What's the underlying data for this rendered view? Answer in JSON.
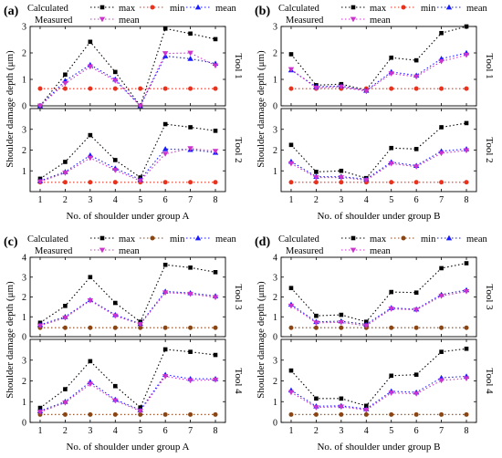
{
  "figure": {
    "panels": [
      {
        "label": "(a)",
        "xlabel": "No. of shoulder under group A",
        "ylabel": "Shoulder damage depth (μm)",
        "subplots": [
          "Tool 1",
          "Tool 2"
        ],
        "min_color": "#e8321e"
      },
      {
        "label": "(b)",
        "xlabel": "No. of shoulder under group B",
        "ylabel": "Shoulder damage depth (μm)",
        "subplots": [
          "Tool 1",
          "Tool 2"
        ],
        "min_color": "#e8321e"
      },
      {
        "label": "(c)",
        "xlabel": "No. of shoulder under group A",
        "ylabel": "Shoulder damage depth (μm)",
        "subplots": [
          "Tool 3",
          "Tool 4"
        ],
        "min_color": "#8b4513"
      },
      {
        "label": "(d)",
        "xlabel": "No. of shoulder under group B",
        "ylabel": "Shoulder damage depth (μm)",
        "subplots": [
          "Tool 3",
          "Tool 4"
        ],
        "min_color": "#8b4513"
      }
    ],
    "legend": {
      "calculated": "Calculated",
      "measured": "Measured",
      "max": "max",
      "min": "min",
      "mean": "mean",
      "measured_mean": "mean"
    },
    "colors": {
      "max": "#000000",
      "min_a": "#e8321e",
      "min_c": "#8b4513",
      "mean_calc": "#1a1aff",
      "mean_meas": "#cc33cc"
    }
  },
  "chart_data": [
    {
      "type": "line",
      "title": "(a) Tool 1",
      "x": [
        1,
        2,
        3,
        4,
        5,
        6,
        7,
        8
      ],
      "ylim": [
        0,
        3
      ],
      "yticks": [
        0,
        1,
        2,
        3
      ],
      "xlabel": "",
      "ylabel": "",
      "series": [
        {
          "name": "max",
          "values": [
            0,
            1.18,
            2.42,
            1.28,
            0,
            2.92,
            2.73,
            2.52
          ]
        },
        {
          "name": "min",
          "values": [
            0.65,
            0.65,
            0.65,
            0.65,
            0.65,
            0.65,
            0.65,
            0.65
          ]
        },
        {
          "name": "mean",
          "values": [
            0,
            0.95,
            1.55,
            1.0,
            0,
            1.88,
            1.78,
            1.6
          ]
        },
        {
          "name": "mean",
          "values": [
            0,
            0.85,
            1.48,
            0.95,
            0,
            1.98,
            2.0,
            1.52
          ]
        }
      ]
    },
    {
      "type": "line",
      "title": "(a) Tool 2",
      "x": [
        1,
        2,
        3,
        4,
        5,
        6,
        7,
        8
      ],
      "ylim": [
        0,
        4
      ],
      "yticks": [
        1,
        2,
        3
      ],
      "xlabel": "No. of shoulder under group A",
      "ylabel": "",
      "series": [
        {
          "name": "max",
          "values": [
            0.62,
            1.43,
            2.72,
            1.52,
            0.68,
            3.25,
            3.1,
            2.93
          ]
        },
        {
          "name": "min",
          "values": [
            0.45,
            0.45,
            0.45,
            0.45,
            0.45,
            0.45,
            0.45,
            0.45
          ]
        },
        {
          "name": "mean",
          "values": [
            0.52,
            0.95,
            1.75,
            1.12,
            0.58,
            2.05,
            2.02,
            1.88
          ]
        },
        {
          "name": "mean",
          "values": [
            0.48,
            0.9,
            1.62,
            1.03,
            0.52,
            1.82,
            2.08,
            1.95
          ]
        }
      ]
    },
    {
      "type": "line",
      "title": "(b) Tool 1",
      "x": [
        1,
        2,
        3,
        4,
        5,
        6,
        7,
        8
      ],
      "ylim": [
        0,
        3
      ],
      "yticks": [
        0,
        1,
        2,
        3
      ],
      "xlabel": "",
      "ylabel": "",
      "series": [
        {
          "name": "max",
          "values": [
            1.95,
            0.78,
            0.82,
            0.6,
            1.82,
            1.72,
            2.75,
            3.0
          ]
        },
        {
          "name": "min",
          "values": [
            0.65,
            0.65,
            0.65,
            0.65,
            0.65,
            0.65,
            0.65,
            0.65
          ]
        },
        {
          "name": "mean",
          "values": [
            1.35,
            0.72,
            0.75,
            0.58,
            1.28,
            1.15,
            1.78,
            2.0
          ]
        },
        {
          "name": "mean",
          "values": [
            1.38,
            0.68,
            0.72,
            0.55,
            1.22,
            1.1,
            1.68,
            1.92
          ]
        }
      ]
    },
    {
      "type": "line",
      "title": "(b) Tool 2",
      "x": [
        1,
        2,
        3,
        4,
        5,
        6,
        7,
        8
      ],
      "ylim": [
        0,
        4
      ],
      "yticks": [
        1,
        2,
        3
      ],
      "xlabel": "No. of shoulder under group B",
      "ylabel": "",
      "series": [
        {
          "name": "max",
          "values": [
            2.25,
            0.95,
            1.0,
            0.65,
            2.1,
            2.05,
            3.1,
            3.3
          ]
        },
        {
          "name": "min",
          "values": [
            0.45,
            0.45,
            0.45,
            0.45,
            0.45,
            0.45,
            0.45,
            0.45
          ]
        },
        {
          "name": "mean",
          "values": [
            1.45,
            0.72,
            0.72,
            0.6,
            1.42,
            1.25,
            1.95,
            2.05
          ]
        },
        {
          "name": "mean",
          "values": [
            1.35,
            0.68,
            0.68,
            0.55,
            1.35,
            1.2,
            1.85,
            1.98
          ]
        }
      ]
    },
    {
      "type": "line",
      "title": "(c) Tool 3",
      "x": [
        1,
        2,
        3,
        4,
        5,
        6,
        7,
        8
      ],
      "ylim": [
        0,
        4
      ],
      "yticks": [
        0,
        1,
        2,
        3,
        4
      ],
      "xlabel": "",
      "ylabel": "",
      "series": [
        {
          "name": "max",
          "values": [
            0.7,
            1.55,
            3.0,
            1.7,
            0.75,
            3.62,
            3.48,
            3.25
          ]
        },
        {
          "name": "min",
          "values": [
            0.45,
            0.45,
            0.45,
            0.45,
            0.45,
            0.45,
            0.45,
            0.45
          ]
        },
        {
          "name": "mean",
          "values": [
            0.6,
            1.0,
            1.85,
            1.1,
            0.65,
            2.28,
            2.2,
            2.05
          ]
        },
        {
          "name": "mean",
          "values": [
            0.55,
            0.95,
            1.82,
            1.05,
            0.62,
            2.22,
            2.15,
            1.98
          ]
        }
      ]
    },
    {
      "type": "line",
      "title": "(c) Tool 4",
      "x": [
        1,
        2,
        3,
        4,
        5,
        6,
        7,
        8
      ],
      "ylim": [
        0,
        4
      ],
      "yticks": [
        0,
        1,
        2,
        3
      ],
      "xlabel": "No. of shoulder under group A",
      "ylabel": "",
      "series": [
        {
          "name": "max",
          "values": [
            0.7,
            1.6,
            2.95,
            1.75,
            0.72,
            3.52,
            3.4,
            3.25
          ]
        },
        {
          "name": "min",
          "values": [
            0.38,
            0.38,
            0.38,
            0.38,
            0.38,
            0.38,
            0.38,
            0.38
          ]
        },
        {
          "name": "mean",
          "values": [
            0.55,
            1.0,
            1.95,
            1.1,
            0.6,
            2.3,
            2.1,
            2.1
          ]
        },
        {
          "name": "mean",
          "values": [
            0.5,
            0.95,
            1.85,
            1.05,
            0.55,
            2.22,
            2.02,
            2.05
          ]
        }
      ]
    },
    {
      "type": "line",
      "title": "(d) Tool 3",
      "x": [
        1,
        2,
        3,
        4,
        5,
        6,
        7,
        8
      ],
      "ylim": [
        0,
        4
      ],
      "yticks": [
        0,
        1,
        2,
        3,
        4
      ],
      "xlabel": "",
      "ylabel": "",
      "series": [
        {
          "name": "max",
          "values": [
            2.45,
            1.05,
            1.1,
            0.75,
            2.25,
            2.22,
            3.45,
            3.7
          ]
        },
        {
          "name": "min",
          "values": [
            0.45,
            0.45,
            0.45,
            0.45,
            0.45,
            0.45,
            0.45,
            0.45
          ]
        },
        {
          "name": "mean",
          "values": [
            1.62,
            0.75,
            0.78,
            0.62,
            1.45,
            1.38,
            2.12,
            2.35
          ]
        },
        {
          "name": "mean",
          "values": [
            1.55,
            0.7,
            0.72,
            0.55,
            1.4,
            1.35,
            2.05,
            2.28
          ]
        }
      ]
    },
    {
      "type": "line",
      "title": "(d) Tool 4",
      "x": [
        1,
        2,
        3,
        4,
        5,
        6,
        7,
        8
      ],
      "ylim": [
        0,
        4
      ],
      "yticks": [
        0,
        1,
        2,
        3
      ],
      "xlabel": "No. of shoulder under group B",
      "ylabel": "",
      "series": [
        {
          "name": "max",
          "values": [
            2.5,
            1.15,
            1.15,
            0.8,
            2.25,
            2.3,
            3.4,
            3.55
          ]
        },
        {
          "name": "min",
          "values": [
            0.38,
            0.38,
            0.38,
            0.38,
            0.38,
            0.38,
            0.38,
            0.38
          ]
        },
        {
          "name": "mean",
          "values": [
            1.55,
            0.78,
            0.8,
            0.65,
            1.5,
            1.45,
            2.15,
            2.22
          ]
        },
        {
          "name": "mean",
          "values": [
            1.45,
            0.72,
            0.75,
            0.6,
            1.42,
            1.38,
            2.02,
            2.12
          ]
        }
      ]
    }
  ]
}
